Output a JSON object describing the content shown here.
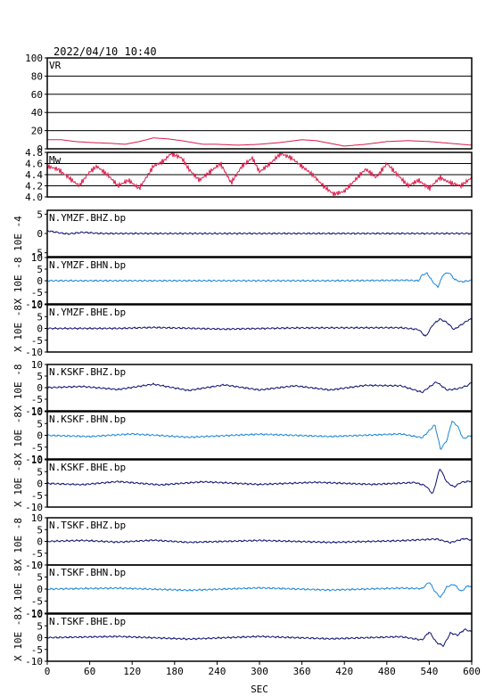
{
  "header": {
    "timestamp": "2022/04/10 10:40"
  },
  "colors": {
    "vr": "#d81b4a",
    "dark": "#0b1070",
    "light": "#1a86d6",
    "frame": "#000000"
  },
  "chart_data": {
    "type": "line",
    "xlabel": "SEC",
    "xlim": [
      0,
      600
    ],
    "xticks": [
      "0",
      "60",
      "120",
      "180",
      "240",
      "300",
      "360",
      "420",
      "480",
      "540",
      "600"
    ],
    "panels": [
      {
        "name": "VR",
        "ylim": [
          0,
          100
        ],
        "yticks": [
          "100",
          "80",
          "60",
          "40",
          "20",
          "0"
        ],
        "gridlines": [
          20,
          40,
          60,
          80
        ],
        "color": "vr",
        "series_points": [
          [
            0,
            10
          ],
          [
            20,
            10
          ],
          [
            40,
            8
          ],
          [
            60,
            7
          ],
          [
            90,
            6
          ],
          [
            110,
            5
          ],
          [
            130,
            8
          ],
          [
            150,
            12
          ],
          [
            170,
            11
          ],
          [
            190,
            9
          ],
          [
            205,
            7
          ],
          [
            220,
            5
          ],
          [
            240,
            5
          ],
          [
            270,
            4
          ],
          [
            300,
            5
          ],
          [
            330,
            7
          ],
          [
            360,
            10
          ],
          [
            380,
            9
          ],
          [
            400,
            6
          ],
          [
            420,
            3
          ],
          [
            450,
            5
          ],
          [
            480,
            8
          ],
          [
            510,
            9
          ],
          [
            540,
            8
          ],
          [
            570,
            6
          ],
          [
            600,
            4
          ]
        ]
      },
      {
        "name": "Mw",
        "ylim": [
          4.0,
          4.8
        ],
        "yticks": [
          "4.8",
          "4.6",
          "4.4",
          "4.2",
          "4.0"
        ],
        "gridlines": [
          4.2,
          4.4,
          4.6
        ],
        "color": "vr",
        "series_points": [
          [
            0,
            4.55
          ],
          [
            15,
            4.5
          ],
          [
            30,
            4.35
          ],
          [
            45,
            4.2
          ],
          [
            60,
            4.45
          ],
          [
            70,
            4.55
          ],
          [
            85,
            4.4
          ],
          [
            100,
            4.2
          ],
          [
            115,
            4.3
          ],
          [
            130,
            4.15
          ],
          [
            150,
            4.55
          ],
          [
            165,
            4.65
          ],
          [
            175,
            4.78
          ],
          [
            190,
            4.7
          ],
          [
            200,
            4.5
          ],
          [
            215,
            4.3
          ],
          [
            230,
            4.45
          ],
          [
            245,
            4.6
          ],
          [
            260,
            4.25
          ],
          [
            275,
            4.55
          ],
          [
            290,
            4.7
          ],
          [
            300,
            4.45
          ],
          [
            315,
            4.6
          ],
          [
            330,
            4.78
          ],
          [
            345,
            4.7
          ],
          [
            360,
            4.55
          ],
          [
            375,
            4.4
          ],
          [
            390,
            4.2
          ],
          [
            405,
            4.05
          ],
          [
            420,
            4.1
          ],
          [
            435,
            4.3
          ],
          [
            450,
            4.5
          ],
          [
            465,
            4.35
          ],
          [
            480,
            4.6
          ],
          [
            495,
            4.4
          ],
          [
            510,
            4.2
          ],
          [
            525,
            4.3
          ],
          [
            540,
            4.15
          ],
          [
            555,
            4.35
          ],
          [
            570,
            4.25
          ],
          [
            585,
            4.2
          ],
          [
            600,
            4.35
          ]
        ]
      },
      {
        "name": "N.YMZF.BHZ.bp",
        "ylim": [
          -6,
          6
        ],
        "yticks": [
          "5",
          "0",
          "-5"
        ],
        "yunit": "10E -4",
        "color": "dark",
        "series_points": [
          [
            0,
            0.7
          ],
          [
            10,
            0.4
          ],
          [
            20,
            0.1
          ],
          [
            30,
            -0.1
          ],
          [
            40,
            0.1
          ],
          [
            50,
            0.3
          ],
          [
            60,
            0.2
          ],
          [
            70,
            0.05
          ],
          [
            80,
            0
          ],
          [
            100,
            0
          ],
          [
            600,
            0
          ]
        ]
      },
      {
        "name": "N.YMZF.BHN.bp",
        "ylim": [
          -10,
          10
        ],
        "yticks": [
          "10",
          "5",
          "0",
          "-5",
          "-10"
        ],
        "yunit": "X 10E -8",
        "color": "light",
        "series_points": [
          [
            0,
            0
          ],
          [
            400,
            0
          ],
          [
            510,
            0.2
          ],
          [
            525,
            0
          ],
          [
            530,
            2.5
          ],
          [
            537,
            3.2
          ],
          [
            545,
            -0.5
          ],
          [
            552,
            -2.8
          ],
          [
            560,
            2.8
          ],
          [
            568,
            3.5
          ],
          [
            576,
            0.5
          ],
          [
            585,
            -0.5
          ],
          [
            592,
            -0.2
          ],
          [
            600,
            0.2
          ]
        ]
      },
      {
        "name": "N.YMZF.BHE.bp",
        "ylim": [
          -10,
          10
        ],
        "yticks": [
          "10",
          "5",
          "0",
          "-5",
          "-10"
        ],
        "yunit": "X 10E -8",
        "color": "dark",
        "series_points": [
          [
            0,
            0
          ],
          [
            100,
            0
          ],
          [
            150,
            0.4
          ],
          [
            250,
            -0.3
          ],
          [
            350,
            0.2
          ],
          [
            500,
            0.3
          ],
          [
            525,
            -0.5
          ],
          [
            535,
            -3.5
          ],
          [
            545,
            1.5
          ],
          [
            555,
            4
          ],
          [
            565,
            2.5
          ],
          [
            575,
            -0.5
          ],
          [
            585,
            1.5
          ],
          [
            595,
            3.5
          ],
          [
            600,
            4
          ]
        ]
      },
      {
        "name": "N.KSKF.BHZ.bp",
        "ylim": [
          -10,
          10
        ],
        "yticks": [
          "10",
          "5",
          "0",
          "-5",
          "-10"
        ],
        "yunit": "X 10E -8",
        "color": "dark",
        "series_points": [
          [
            0,
            0
          ],
          [
            50,
            0.5
          ],
          [
            100,
            -0.8
          ],
          [
            150,
            1.5
          ],
          [
            200,
            -1.2
          ],
          [
            250,
            1.2
          ],
          [
            300,
            -1
          ],
          [
            350,
            0.8
          ],
          [
            400,
            -1
          ],
          [
            450,
            1
          ],
          [
            500,
            0.8
          ],
          [
            530,
            -2
          ],
          [
            550,
            2.5
          ],
          [
            565,
            -1
          ],
          [
            580,
            -0.5
          ],
          [
            595,
            1
          ],
          [
            600,
            2.5
          ]
        ]
      },
      {
        "name": "N.KSKF.BHN.bp",
        "ylim": [
          -10,
          10
        ],
        "yticks": [
          "10",
          "5",
          "0",
          "-5",
          "-10"
        ],
        "yunit": "X 10E -8",
        "color": "light",
        "series_points": [
          [
            0,
            0
          ],
          [
            60,
            -0.5
          ],
          [
            120,
            0.6
          ],
          [
            200,
            -0.8
          ],
          [
            300,
            0.5
          ],
          [
            400,
            -0.5
          ],
          [
            500,
            0.6
          ],
          [
            530,
            -1
          ],
          [
            540,
            2
          ],
          [
            548,
            4.5
          ],
          [
            556,
            -6
          ],
          [
            565,
            -2
          ],
          [
            572,
            6
          ],
          [
            580,
            4
          ],
          [
            588,
            -1.5
          ],
          [
            595,
            -0.5
          ],
          [
            600,
            0
          ]
        ]
      },
      {
        "name": "N.KSKF.BHE.bp",
        "ylim": [
          -10,
          10
        ],
        "yticks": [
          "10",
          "5",
          "0",
          "-5",
          "-10"
        ],
        "yunit": "X 10E -8",
        "color": "dark",
        "series_points": [
          [
            0,
            0
          ],
          [
            50,
            -0.5
          ],
          [
            100,
            0.8
          ],
          [
            160,
            -0.6
          ],
          [
            220,
            0.7
          ],
          [
            300,
            -0.4
          ],
          [
            380,
            0.5
          ],
          [
            460,
            -0.4
          ],
          [
            520,
            0.4
          ],
          [
            535,
            -1
          ],
          [
            545,
            -4.5
          ],
          [
            555,
            6.5
          ],
          [
            565,
            0.5
          ],
          [
            575,
            -1.5
          ],
          [
            585,
            0.5
          ],
          [
            600,
            1
          ]
        ]
      },
      {
        "name": "N.TSKF.BHZ.bp",
        "ylim": [
          -10,
          10
        ],
        "yticks": [
          "10",
          "5",
          "0",
          "-5",
          "-10"
        ],
        "yunit": "X 10E -8",
        "color": "dark",
        "series_points": [
          [
            0,
            0
          ],
          [
            50,
            0.4
          ],
          [
            100,
            -0.3
          ],
          [
            150,
            0.5
          ],
          [
            200,
            -0.4
          ],
          [
            300,
            0.4
          ],
          [
            400,
            -0.4
          ],
          [
            500,
            0.3
          ],
          [
            550,
            1
          ],
          [
            570,
            -0.5
          ],
          [
            590,
            1.2
          ],
          [
            600,
            0.5
          ]
        ]
      },
      {
        "name": "N.TSKF.BHN.bp",
        "ylim": [
          -10,
          10
        ],
        "yticks": [
          "10",
          "5",
          "0",
          "-5",
          "-10"
        ],
        "yunit": "X 10E -8",
        "color": "light",
        "series_points": [
          [
            0,
            0
          ],
          [
            100,
            0.4
          ],
          [
            200,
            -0.5
          ],
          [
            300,
            0.5
          ],
          [
            400,
            -0.4
          ],
          [
            500,
            0.4
          ],
          [
            530,
            0.2
          ],
          [
            540,
            3
          ],
          [
            548,
            -1
          ],
          [
            556,
            -3.5
          ],
          [
            565,
            1
          ],
          [
            575,
            2
          ],
          [
            585,
            -1
          ],
          [
            595,
            1.5
          ],
          [
            600,
            0.5
          ]
        ]
      },
      {
        "name": "N.TSKF.BHE.bp",
        "ylim": [
          -10,
          10
        ],
        "yticks": [
          "10",
          "5",
          "0",
          "-5",
          "-10"
        ],
        "yunit": "X 10E -8",
        "color": "dark",
        "series_points": [
          [
            0,
            0
          ],
          [
            100,
            0.5
          ],
          [
            200,
            -0.6
          ],
          [
            300,
            0.5
          ],
          [
            400,
            -0.5
          ],
          [
            500,
            0.4
          ],
          [
            530,
            -1
          ],
          [
            540,
            2.5
          ],
          [
            550,
            -2
          ],
          [
            560,
            -3.5
          ],
          [
            570,
            2
          ],
          [
            580,
            1
          ],
          [
            590,
            3.5
          ],
          [
            600,
            2.5
          ]
        ]
      }
    ]
  }
}
